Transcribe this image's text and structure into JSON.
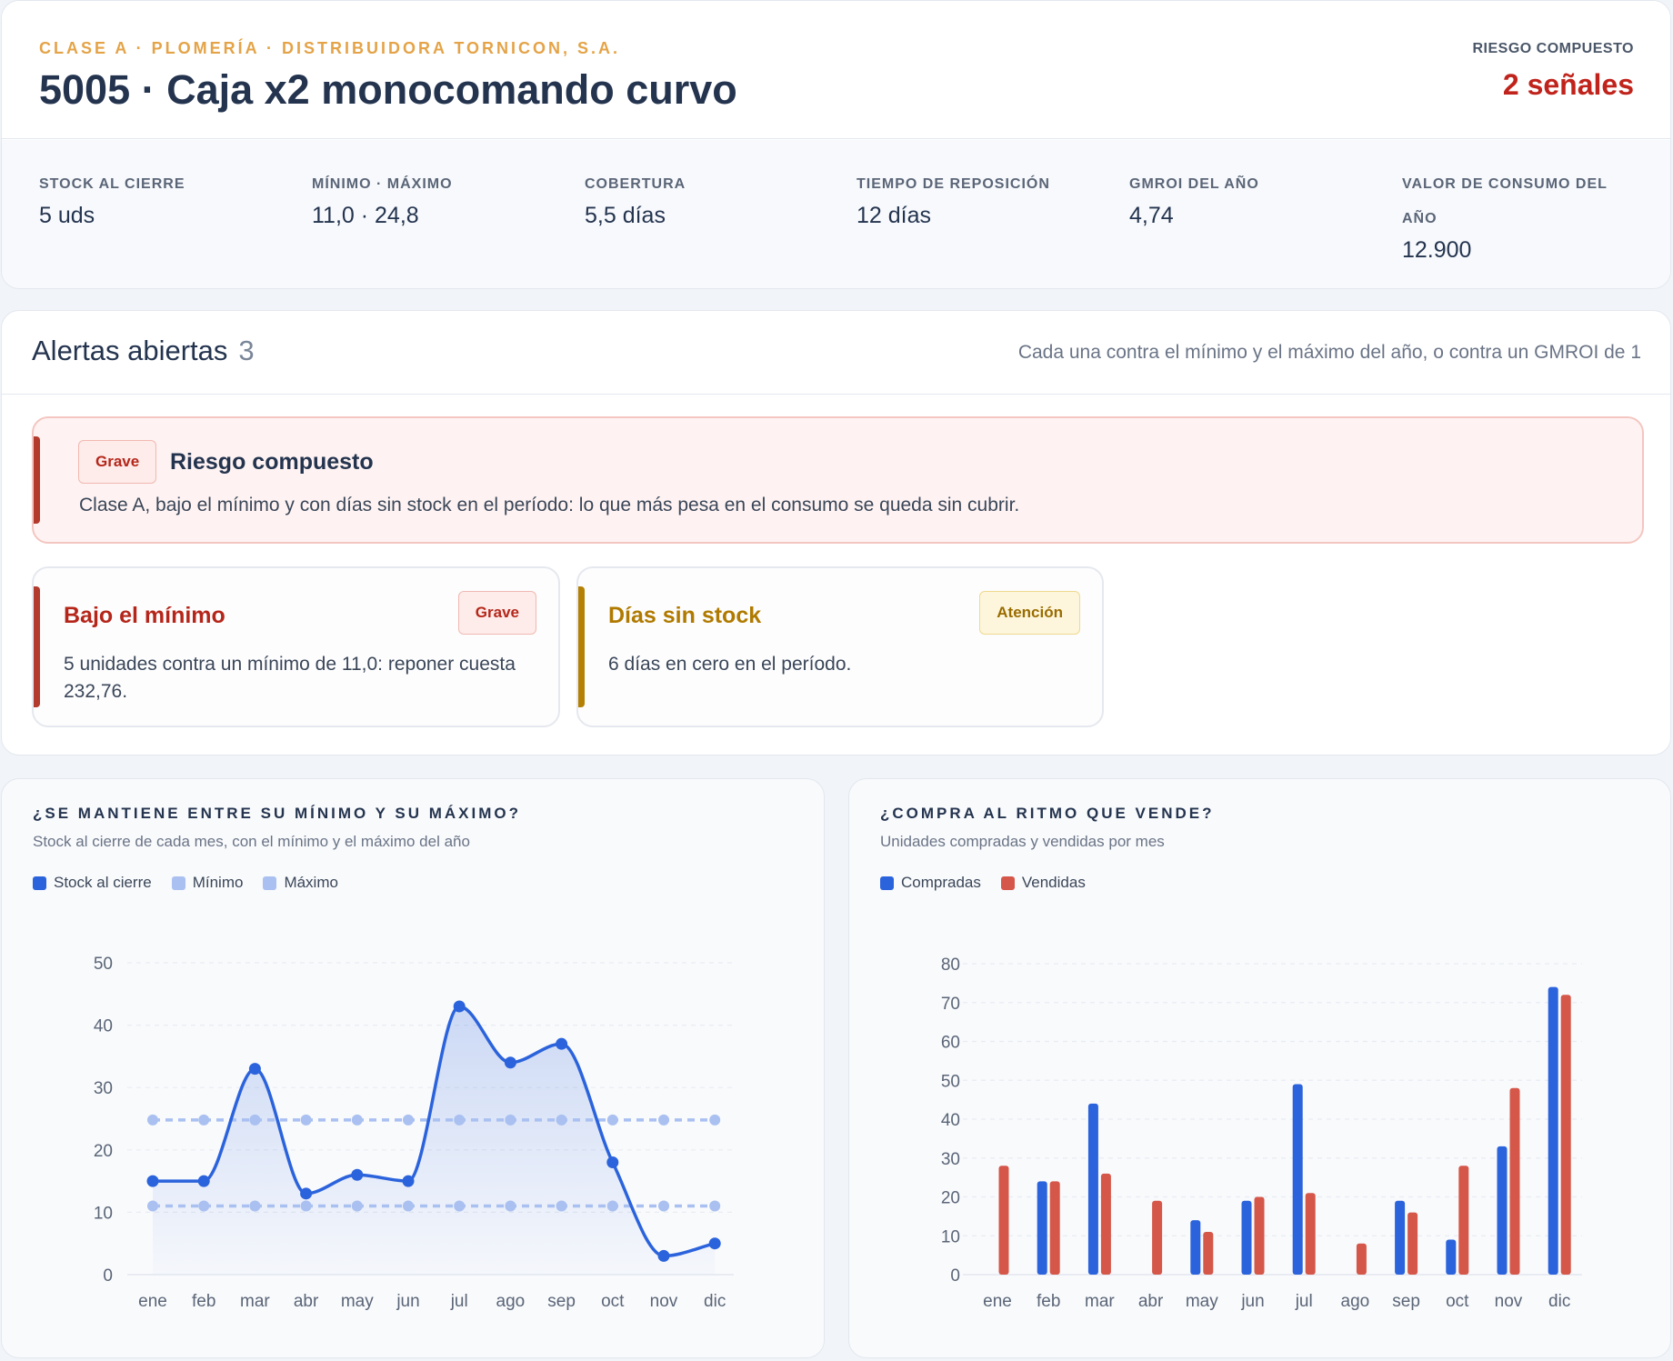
{
  "header": {
    "eyebrow": "CLASE A · PLOMERÍA · DISTRIBUIDORA TORNICON, S.A.",
    "title": "5005 · Caja x2 monocomando curvo",
    "risk_label": "RIESGO COMPUESTO",
    "risk_value": "2 señales"
  },
  "kpis": [
    {
      "label": "STOCK AL CIERRE",
      "value": "5 uds"
    },
    {
      "label": "MÍNIMO · MÁXIMO",
      "value": "11,0 · 24,8"
    },
    {
      "label": "COBERTURA",
      "value": "5,5 días"
    },
    {
      "label": "TIEMPO DE REPOSICIÓN",
      "value": "12 días"
    },
    {
      "label": "GMROI DEL AÑO",
      "value": "4,74"
    },
    {
      "label": "VALOR DE CONSUMO DEL AÑO",
      "value": "12.900"
    }
  ],
  "alerts": {
    "title": "Alertas abiertas",
    "count": "3",
    "note": "Cada una contra el mínimo y el máximo del año, o contra un GMROI de 1",
    "items": [
      {
        "badge": "Grave",
        "title": "Riesgo compuesto",
        "desc": "Clase A, bajo el mínimo y con días sin stock en el período: lo que más pesa en el consumo se queda sin cubrir."
      },
      {
        "badge": "Grave",
        "title": "Bajo el mínimo",
        "desc": "5 unidades contra un mínimo de 11,0: reponer cuesta 232,76."
      },
      {
        "badge": "Atención",
        "title": "Días sin stock",
        "desc": "6 días en cero en el período."
      }
    ]
  },
  "colors": {
    "stock": "#2b63dc",
    "limits": "#a9c0f1",
    "compradas": "#2b63dc",
    "vendidas": "#d5574a"
  },
  "chart_data": [
    {
      "type": "line",
      "title": "¿SE MANTIENE ENTRE SU MÍNIMO Y SU MÁXIMO?",
      "subtitle": "Stock al cierre de cada mes, con el mínimo y el máximo del año",
      "categories": [
        "ene",
        "feb",
        "mar",
        "abr",
        "may",
        "jun",
        "jul",
        "ago",
        "sep",
        "oct",
        "nov",
        "dic"
      ],
      "series": [
        {
          "name": "Stock al cierre",
          "values": [
            15,
            15,
            33,
            13,
            16,
            15,
            43,
            34,
            37,
            18,
            3,
            5
          ]
        },
        {
          "name": "Mínimo",
          "values": [
            11,
            11,
            11,
            11,
            11,
            11,
            11,
            11,
            11,
            11,
            11,
            11
          ]
        },
        {
          "name": "Máximo",
          "values": [
            24.8,
            24.8,
            24.8,
            24.8,
            24.8,
            24.8,
            24.8,
            24.8,
            24.8,
            24.8,
            24.8,
            24.8
          ]
        }
      ],
      "yticks": [
        0,
        10,
        20,
        30,
        40,
        50
      ],
      "ylim": [
        0,
        50
      ],
      "grid": true,
      "legend": "top-left"
    },
    {
      "type": "bar",
      "title": "¿COMPRA AL RITMO QUE VENDE?",
      "subtitle": "Unidades compradas y vendidas por mes",
      "categories": [
        "ene",
        "feb",
        "mar",
        "abr",
        "may",
        "jun",
        "jul",
        "ago",
        "sep",
        "oct",
        "nov",
        "dic"
      ],
      "series": [
        {
          "name": "Compradas",
          "values": [
            0,
            24,
            44,
            0,
            14,
            19,
            49,
            0,
            19,
            9,
            33,
            74
          ]
        },
        {
          "name": "Vendidas",
          "values": [
            28,
            24,
            26,
            19,
            11,
            20,
            21,
            8,
            16,
            28,
            48,
            72
          ]
        }
      ],
      "yticks": [
        0,
        10,
        20,
        30,
        40,
        50,
        60,
        70,
        80
      ],
      "ylim": [
        0,
        80
      ],
      "grid": true,
      "legend": "top-left"
    }
  ]
}
